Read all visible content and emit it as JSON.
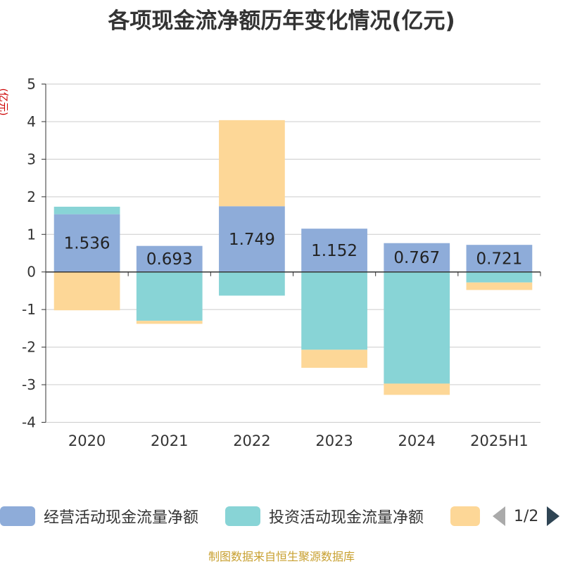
{
  "chart_data": {
    "type": "bar",
    "stacked": true,
    "title": "各项现金流净额历年变化情况(亿元)",
    "ylabel": "(亿元)",
    "categories": [
      "2020",
      "2021",
      "2022",
      "2023",
      "2024",
      "2025H1"
    ],
    "ylim": [
      -4,
      5
    ],
    "yticks": [
      -4,
      -3,
      -2,
      -1,
      0,
      1,
      2,
      3,
      4,
      5
    ],
    "grid": true,
    "series": [
      {
        "name": "经营活动现金流量净额",
        "color": "#8eacd9",
        "values": [
          1.536,
          0.693,
          1.749,
          1.152,
          0.767,
          0.721
        ],
        "show_labels": true
      },
      {
        "name": "投资活动现金流量净额",
        "color": "#88d4d6",
        "values": [
          0.2,
          -1.3,
          -0.63,
          -2.07,
          -2.97,
          -0.28
        ],
        "show_labels": false
      },
      {
        "name": "",
        "color": "#fdd797",
        "values": [
          -1.02,
          -0.08,
          2.29,
          -0.48,
          -0.3,
          -0.2
        ],
        "show_labels": false
      }
    ],
    "legend": {
      "position": "bottom",
      "page": "1/2"
    }
  },
  "source_text": "制图数据来自恒生聚源数据库"
}
